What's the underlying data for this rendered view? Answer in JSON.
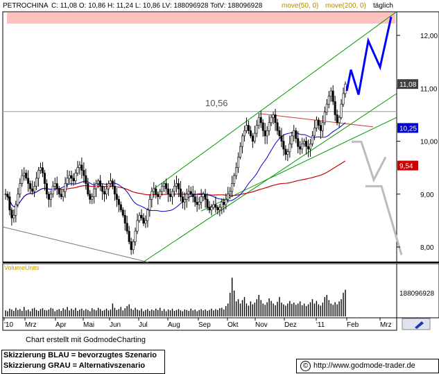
{
  "header": {
    "symbol": "PETROCHINA",
    "ohlc_text": "C: 11,08 O: 10,86 H: 11,24 L: 10,86 LV: 188096928 TotV: 188096928",
    "ma50_label": "move(50, 0)",
    "ma200_label": "move(200, 0)",
    "period": "täglich"
  },
  "chart_data": {
    "type": "candlestick",
    "price_axis": {
      "ticks": [
        "12,00",
        "11,00",
        "10,00",
        "9,00",
        "8,00"
      ],
      "ylim": [
        7.7,
        12.45
      ]
    },
    "price_labels": [
      {
        "text": "11,08",
        "value": 11.08,
        "color": "#ffffff",
        "bg": "#404040"
      },
      {
        "text": "10,25",
        "value": 10.25,
        "color": "#ffffff",
        "bg": "#0000cc"
      },
      {
        "text": "9,54",
        "value": 9.54,
        "color": "#ffffff",
        "bg": "#cc0000"
      }
    ],
    "x_ticks": [
      "'10",
      "Mrz",
      "Apr",
      "Mai",
      "Jun",
      "Jul",
      "Aug",
      "Sep",
      "Okt",
      "Nov",
      "Dez",
      "'11",
      "Feb",
      "Mrz"
    ],
    "annotations": [
      {
        "text": "10,56",
        "value": 10.56
      }
    ],
    "close_series": [
      9.0,
      8.95,
      8.7,
      8.55,
      8.6,
      8.8,
      9.0,
      9.2,
      9.35,
      9.4,
      9.3,
      9.2,
      9.1,
      9.05,
      9.15,
      9.3,
      9.45,
      9.5,
      9.4,
      9.2,
      9.0,
      8.9,
      9.0,
      9.15,
      9.2,
      9.1,
      9.0,
      8.95,
      9.05,
      9.2,
      9.3,
      9.35,
      9.3,
      9.25,
      9.4,
      9.5,
      9.55,
      9.45,
      9.35,
      9.2,
      9.0,
      8.9,
      8.95,
      9.1,
      9.2,
      9.25,
      9.15,
      9.05,
      9.0,
      9.1,
      9.2,
      9.25,
      9.15,
      9.0,
      8.9,
      8.8,
      8.7,
      8.6,
      8.45,
      8.3,
      8.1,
      7.95,
      8.1,
      8.3,
      8.5,
      8.6,
      8.55,
      8.45,
      8.5,
      8.7,
      8.9,
      9.05,
      9.1,
      9.0,
      8.95,
      9.05,
      9.15,
      9.2,
      9.1,
      9.0,
      8.95,
      9.05,
      9.15,
      9.2,
      9.1,
      8.95,
      8.85,
      8.9,
      9.0,
      9.05,
      9.0,
      8.95,
      8.85,
      8.8,
      8.85,
      8.95,
      9.0,
      8.9,
      8.75,
      8.7,
      8.75,
      8.8,
      8.75,
      8.7,
      8.75,
      8.85,
      8.8,
      8.9,
      9.0,
      9.05,
      9.2,
      9.35,
      9.5,
      9.7,
      9.9,
      10.1,
      10.2,
      10.3,
      10.2,
      10.1,
      10.0,
      10.15,
      10.3,
      10.45,
      10.35,
      10.2,
      10.1,
      10.2,
      10.35,
      10.45,
      10.5,
      10.35,
      10.2,
      10.1,
      10.0,
      9.85,
      9.75,
      9.8,
      9.95,
      10.1,
      10.2,
      10.05,
      9.9,
      9.85,
      9.95,
      10.0,
      9.9,
      9.85,
      9.95,
      10.1,
      10.25,
      10.4,
      10.3,
      10.2,
      10.35,
      10.55,
      10.7,
      10.85,
      10.95,
      10.75,
      10.5,
      10.35,
      10.45,
      10.7,
      10.9,
      11.08
    ],
    "volume_axis": {
      "label": "188096928"
    },
    "volume_series": [
      0.14,
      0.12,
      0.18,
      0.16,
      0.13,
      0.2,
      0.15,
      0.17,
      0.13,
      0.22,
      0.14,
      0.16,
      0.12,
      0.18,
      0.2,
      0.15,
      0.13,
      0.17,
      0.19,
      0.15,
      0.14,
      0.16,
      0.2,
      0.18,
      0.12,
      0.15,
      0.17,
      0.13,
      0.19,
      0.16,
      0.22,
      0.14,
      0.18,
      0.15,
      0.2,
      0.13,
      0.16,
      0.18,
      0.14,
      0.17,
      0.15,
      0.12,
      0.19,
      0.16,
      0.14,
      0.2,
      0.17,
      0.13,
      0.15,
      0.18,
      0.14,
      0.16,
      0.3,
      0.2,
      0.15,
      0.17,
      0.22,
      0.14,
      0.19,
      0.24,
      0.28,
      0.18,
      0.15,
      0.2,
      0.16,
      0.14,
      0.18,
      0.12,
      0.15,
      0.17,
      0.13,
      0.16,
      0.14,
      0.18,
      0.15,
      0.2,
      0.13,
      0.17,
      0.12,
      0.16,
      0.14,
      0.18,
      0.13,
      0.15,
      0.17,
      0.14,
      0.12,
      0.16,
      0.15,
      0.13,
      0.18,
      0.14,
      0.16,
      0.12,
      0.15,
      0.17,
      0.14,
      0.16,
      0.13,
      0.15,
      0.18,
      0.14,
      0.17,
      0.15,
      0.19,
      0.2,
      0.16,
      0.24,
      0.3,
      0.55,
      0.9,
      0.6,
      0.35,
      0.4,
      0.3,
      0.38,
      0.45,
      0.3,
      0.25,
      0.35,
      0.28,
      0.32,
      0.4,
      0.5,
      0.38,
      0.3,
      0.27,
      0.33,
      0.42,
      0.36,
      0.3,
      0.26,
      0.34,
      0.45,
      0.32,
      0.28,
      0.25,
      0.3,
      0.36,
      0.29,
      0.32,
      0.27,
      0.3,
      0.35,
      0.26,
      0.3,
      0.24,
      0.28,
      0.33,
      0.4,
      0.3,
      0.36,
      0.28,
      0.25,
      0.32,
      0.45,
      0.5,
      0.38,
      0.3,
      0.27,
      0.33,
      0.28,
      0.35,
      0.4,
      0.55,
      0.62
    ],
    "volume_label": "VolumeUnits",
    "legend": {
      "blue": "Skizzierung BLAU = bevorzugtes Szenario",
      "gray": "Skizzierung GRAU = Alternativszenario"
    },
    "colors": {
      "candle": "#000000",
      "ma50": "#0000cc",
      "ma200": "#cc0000",
      "channel": "#009900",
      "resistance": "#cc3333",
      "scenario_blue": "#0000ff",
      "scenario_gray": "#bbbbbb",
      "band": "#ffc0c0",
      "hline": "#999999",
      "volume": "#000000"
    }
  },
  "footer": {
    "credit": "Chart erstellt mit GodmodeCharting",
    "source_symbol": "©",
    "source_url": "http://www.godmode-trader.de"
  }
}
